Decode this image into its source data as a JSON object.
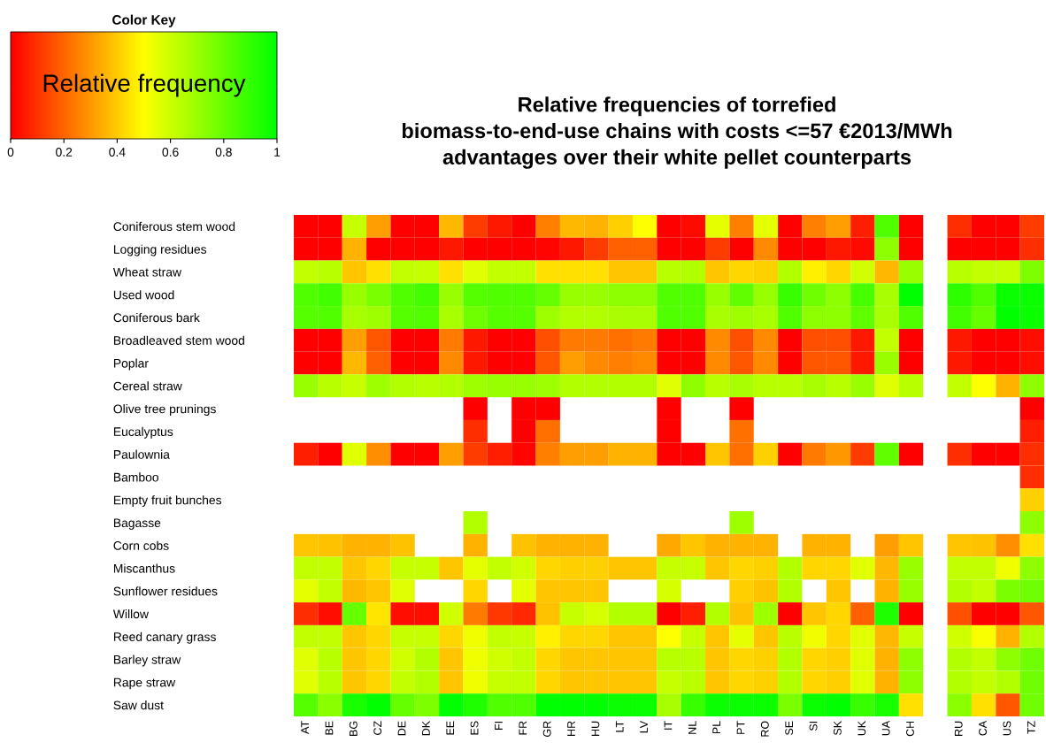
{
  "chart_data": {
    "type": "heatmap",
    "title": "Relative frequencies of torrefied\nbiomass-to-end-use chains with costs <=57 €2013/MWh\nadvantages over their white pellet counterparts",
    "legend_title": "Color Key",
    "clabel": "Relative frequency",
    "clim": [
      0,
      1
    ],
    "cticks": [
      0,
      0.2,
      0.4,
      0.6,
      0.8,
      1
    ],
    "categories": [
      "AT",
      "BE",
      "BG",
      "CZ",
      "DE",
      "DK",
      "EE",
      "ES",
      "FI",
      "FR",
      "GR",
      "HR",
      "HU",
      "LT",
      "LV",
      "IT",
      "NL",
      "PL",
      "PT",
      "RO",
      "SE",
      "SI",
      "SK",
      "UK",
      "UA",
      "CH",
      null,
      "RU",
      "CA",
      "US",
      "TZ"
    ],
    "y_categories": [
      "Coniferous stem wood",
      "Logging residues",
      "Wheat straw",
      "Used wood",
      "Coniferous bark",
      "Broadleaved stem wood",
      "Poplar",
      "Cereal straw",
      "Olive tree prunings",
      "Eucalyptus",
      "Paulownia",
      "Bamboo",
      "Empty fruit bunches",
      "Bagasse",
      "Corn cobs",
      "Miscanthus",
      "Sunflower residues",
      "Willow",
      "Reed canary grass",
      "Barley straw",
      "Rape straw",
      "Saw dust"
    ],
    "cells": [
      [
        0,
        0,
        0.61,
        0.31,
        0,
        0,
        0.36,
        0.12,
        0.05,
        0,
        0.25,
        0.36,
        0.35,
        0.41,
        0.5,
        0,
        0.02,
        0.55,
        0.25,
        0.55,
        0,
        0.25,
        0.31,
        0.06,
        0.84,
        0,
        null,
        0.09,
        0,
        0,
        0.12
      ],
      [
        0,
        0,
        0.35,
        0,
        0,
        0,
        0.05,
        0,
        0,
        0,
        0.01,
        0.05,
        0.12,
        0.19,
        0.19,
        0,
        0,
        0.12,
        0,
        0.27,
        0,
        0,
        0.05,
        0.02,
        0.72,
        0,
        null,
        0,
        0,
        0,
        0.09
      ],
      [
        0.62,
        0.64,
        0.39,
        0.44,
        0.62,
        0.61,
        0.44,
        0.56,
        0.62,
        0.62,
        0.44,
        0.44,
        0.44,
        0.39,
        0.39,
        0.64,
        0.65,
        0.39,
        0.42,
        0.41,
        0.65,
        0.47,
        0.42,
        0.59,
        0.36,
        0.7,
        null,
        0.64,
        0.62,
        0.61,
        0.75
      ],
      [
        0.84,
        0.87,
        0.7,
        0.76,
        0.84,
        0.87,
        0.7,
        0.83,
        0.84,
        0.84,
        0.8,
        0.7,
        0.7,
        0.72,
        0.72,
        0.84,
        0.84,
        0.7,
        0.81,
        0.7,
        0.89,
        0.78,
        0.72,
        0.86,
        0.67,
        1,
        null,
        0.91,
        0.84,
        0.98,
        0.98
      ],
      [
        0.83,
        0.84,
        0.67,
        0.69,
        0.83,
        0.84,
        0.67,
        0.78,
        0.83,
        0.83,
        0.69,
        0.65,
        0.65,
        0.67,
        0.67,
        0.84,
        0.84,
        0.67,
        0.69,
        0.67,
        0.84,
        0.72,
        0.72,
        0.81,
        0.67,
        0.84,
        null,
        0.87,
        0.8,
        1,
        0.98
      ],
      [
        0,
        0,
        0.31,
        0.17,
        0,
        0,
        0.24,
        0.05,
        0,
        0,
        0.16,
        0.24,
        0.24,
        0.22,
        0.24,
        0,
        0,
        0.27,
        0.16,
        0.27,
        0,
        0.16,
        0.16,
        0.05,
        0.62,
        0,
        null,
        0.05,
        0,
        0,
        0.03
      ],
      [
        0,
        0,
        0.36,
        0.19,
        0,
        0,
        0.27,
        0.05,
        0,
        0,
        0.17,
        0.31,
        0.27,
        0.25,
        0.27,
        0,
        0,
        0.27,
        0.17,
        0.27,
        0,
        0.17,
        0.17,
        0.05,
        0.7,
        0,
        null,
        0.05,
        0,
        0,
        0.03
      ],
      [
        0.7,
        0.64,
        0.61,
        0.69,
        0.65,
        0.64,
        0.65,
        0.69,
        0.7,
        0.7,
        0.69,
        0.65,
        0.65,
        0.65,
        0.65,
        0.56,
        0.72,
        0.64,
        0.67,
        0.64,
        0.64,
        0.67,
        0.64,
        0.7,
        0.56,
        0.64,
        null,
        0.62,
        0.5,
        0.35,
        0.72
      ],
      [
        null,
        null,
        null,
        null,
        null,
        null,
        null,
        0,
        null,
        0,
        0,
        null,
        null,
        null,
        null,
        0,
        null,
        null,
        0,
        null,
        null,
        null,
        null,
        null,
        null,
        null,
        null,
        null,
        null,
        null,
        0
      ],
      [
        null,
        null,
        null,
        null,
        null,
        null,
        null,
        0.09,
        null,
        0,
        0.22,
        null,
        null,
        null,
        null,
        0,
        null,
        null,
        0.22,
        null,
        null,
        null,
        null,
        null,
        null,
        null,
        null,
        null,
        null,
        null,
        0.06
      ],
      [
        0.06,
        0,
        0.56,
        0.28,
        0,
        0,
        0.31,
        0.12,
        0.06,
        0.01,
        0.25,
        0.31,
        0.31,
        0.35,
        0.35,
        0,
        0,
        0.39,
        0.22,
        0.41,
        0,
        0.24,
        0.3,
        0.12,
        0.81,
        0,
        null,
        0.09,
        0,
        0,
        0.09
      ],
      [
        null,
        null,
        null,
        null,
        null,
        null,
        null,
        null,
        null,
        null,
        null,
        null,
        null,
        null,
        null,
        null,
        null,
        null,
        null,
        null,
        null,
        null,
        null,
        null,
        null,
        null,
        null,
        null,
        null,
        null,
        0.09
      ],
      [
        null,
        null,
        null,
        null,
        null,
        null,
        null,
        null,
        null,
        null,
        null,
        null,
        null,
        null,
        null,
        null,
        null,
        null,
        null,
        null,
        null,
        null,
        null,
        null,
        null,
        null,
        null,
        null,
        null,
        null,
        0.41
      ],
      [
        null,
        null,
        null,
        null,
        null,
        null,
        null,
        0.65,
        null,
        null,
        null,
        null,
        null,
        null,
        null,
        null,
        null,
        null,
        0.69,
        null,
        null,
        null,
        null,
        null,
        null,
        null,
        null,
        null,
        null,
        null,
        0.72
      ],
      [
        0.39,
        0.38,
        0.35,
        0.35,
        0.38,
        null,
        null,
        0.35,
        null,
        0.38,
        0.35,
        0.35,
        0.35,
        null,
        null,
        0.33,
        0.39,
        0.35,
        0.35,
        0.35,
        null,
        0.35,
        0.35,
        null,
        0.31,
        0.39,
        null,
        0.39,
        0.38,
        0.28,
        0.44
      ],
      [
        0.62,
        0.62,
        0.39,
        0.42,
        0.61,
        0.61,
        0.39,
        0.55,
        0.62,
        0.59,
        0.42,
        0.41,
        0.41,
        0.39,
        0.39,
        0.61,
        0.61,
        0.39,
        0.42,
        0.41,
        0.65,
        0.42,
        0.42,
        0.56,
        0.36,
        0.7,
        null,
        0.62,
        0.62,
        0.53,
        0.72
      ],
      [
        0.55,
        0.62,
        0.36,
        0.39,
        0.56,
        null,
        null,
        0.42,
        null,
        0.55,
        0.39,
        0.39,
        0.39,
        null,
        null,
        0.58,
        null,
        null,
        0.41,
        0.38,
        0.65,
        null,
        0.39,
        null,
        0.35,
        0.7,
        null,
        0.65,
        0.62,
        0.76,
        0.78
      ],
      [
        0.09,
        0.03,
        0.8,
        0.45,
        0.03,
        0.03,
        0.59,
        0.24,
        0.11,
        0.08,
        0.38,
        0.61,
        0.58,
        0.65,
        0.65,
        0,
        0.06,
        0.65,
        0.38,
        0.69,
        0,
        0.39,
        0.42,
        0.19,
        0.94,
        0,
        null,
        0.16,
        0,
        0,
        0.17
      ],
      [
        0.62,
        0.62,
        0.39,
        0.42,
        0.61,
        0.61,
        0.42,
        0.53,
        0.62,
        0.61,
        0.47,
        0.42,
        0.42,
        0.39,
        0.39,
        0.5,
        0.61,
        0.39,
        0.55,
        0.39,
        0.64,
        0.53,
        0.42,
        0.56,
        0.36,
        0.61,
        null,
        0.59,
        0.51,
        0.35,
        0.65
      ],
      [
        0.56,
        0.64,
        0.39,
        0.42,
        0.59,
        0.65,
        0.39,
        0.53,
        0.59,
        0.62,
        0.42,
        0.39,
        0.39,
        0.39,
        0.39,
        0.64,
        0.64,
        0.39,
        0.42,
        0.41,
        0.65,
        0.42,
        0.41,
        0.56,
        0.35,
        0.72,
        null,
        0.65,
        0.62,
        0.72,
        0.78
      ],
      [
        0.56,
        0.64,
        0.39,
        0.42,
        0.62,
        0.65,
        0.39,
        0.53,
        0.61,
        0.62,
        0.42,
        0.39,
        0.39,
        0.39,
        0.39,
        0.61,
        0.64,
        0.39,
        0.42,
        0.41,
        0.65,
        0.42,
        0.41,
        0.56,
        0.35,
        0.72,
        null,
        0.65,
        0.62,
        0.65,
        0.78
      ],
      [
        0.83,
        0.73,
        0.95,
        1,
        0.8,
        0.75,
        1,
        0.94,
        0.84,
        0.84,
        1,
        1,
        1,
        0.98,
        0.98,
        0.67,
        0.89,
        0.98,
        0.98,
        0.98,
        0.76,
        0.98,
        1,
        0.89,
        0.95,
        0.44,
        null,
        0.73,
        0.44,
        0.17,
        0.78
      ]
    ]
  }
}
